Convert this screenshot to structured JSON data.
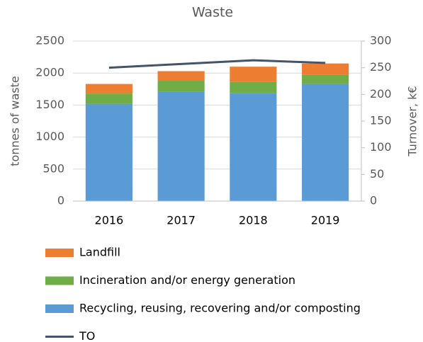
{
  "chart_data": {
    "type": "bar",
    "title": "Waste",
    "y_label": "tonnes of waste",
    "y2_label": "Turnover, k€",
    "categories": [
      "2016",
      "2017",
      "2018",
      "2019"
    ],
    "series": [
      {
        "name": "Recycling, reusing, recovering and/or composting",
        "color": "#5b9bd5",
        "values": [
          1520,
          1710,
          1690,
          1830
        ]
      },
      {
        "name": "Incineration and/or energy generation",
        "color": "#70ad47",
        "values": [
          160,
          170,
          170,
          140
        ]
      },
      {
        "name": "Landfill",
        "color": "#ed7d31",
        "values": [
          150,
          150,
          240,
          180
        ]
      },
      {
        "name": "TO",
        "color": "#44546a",
        "type": "line",
        "axis": "y2",
        "values": [
          250,
          257,
          264,
          259
        ]
      }
    ],
    "ylim": [
      0,
      2500
    ],
    "yticks": [
      0,
      500,
      1000,
      1500,
      2000,
      2500
    ],
    "y2lim": [
      0,
      300
    ],
    "y2ticks": [
      0,
      50,
      100,
      150,
      200,
      250,
      300
    ],
    "grid": true,
    "stacked": true,
    "legend": "bottom"
  }
}
